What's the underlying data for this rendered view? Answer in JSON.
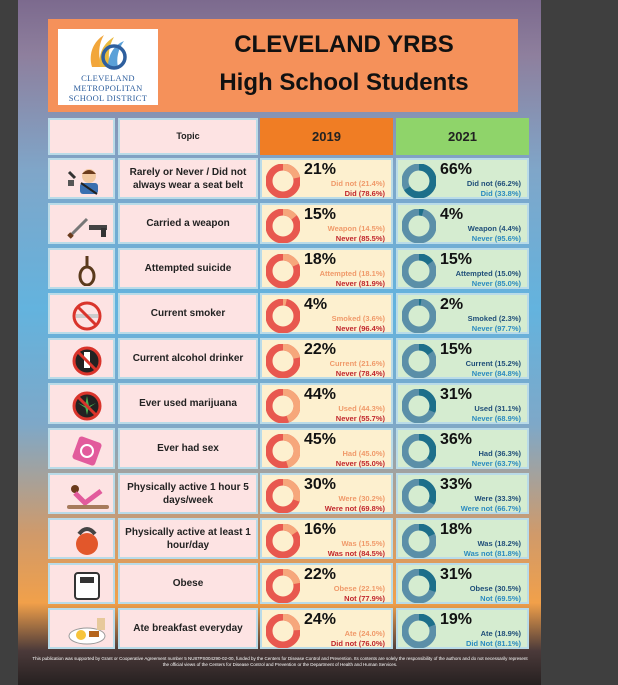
{
  "header": {
    "title_line1": "CLEVELAND YRBS",
    "title_line2": "High School Students",
    "logo": {
      "line1": "CLEVELAND",
      "line2": "METROPOLITAN",
      "line3": "SCHOOL DISTRICT"
    }
  },
  "table_header": {
    "topic": "Topic",
    "col_2019": "2019",
    "col_2021": "2021"
  },
  "colors": {
    "y2019_main": "#e8584f",
    "y2019_minor": "#f6a77b",
    "y2021_main": "#5b8fa8",
    "y2021_minor": "#1d6f8a"
  },
  "rows": [
    {
      "icon": "seatbelt-driver-icon",
      "topic": "Rarely or Never / Did not always wear a seat belt",
      "y2019": {
        "pct": "21%",
        "l1": "Did not (21.4%)",
        "l2": "Did (78.6%)",
        "value": 21.4
      },
      "y2021": {
        "pct": "66%",
        "l1": "Did not (66.2%)",
        "l2": "Did (33.8%)",
        "value": 66.2
      }
    },
    {
      "icon": "weapon-icon",
      "topic": "Carried a weapon",
      "y2019": {
        "pct": "15%",
        "l1": "Weapon (14.5%)",
        "l2": "Never (85.5%)",
        "value": 14.5
      },
      "y2021": {
        "pct": "4%",
        "l1": "Weapon (4.4%)",
        "l2": "Never (95.6%)",
        "value": 4.4
      }
    },
    {
      "icon": "noose-icon",
      "topic": "Attempted suicide",
      "y2019": {
        "pct": "18%",
        "l1": "Attempted (18.1%)",
        "l2": "Never (81.9%)",
        "value": 18.1
      },
      "y2021": {
        "pct": "15%",
        "l1": "Attempted (15.0%)",
        "l2": "Never (85.0%)",
        "value": 15.0
      }
    },
    {
      "icon": "no-smoking-icon",
      "topic": "Current smoker",
      "y2019": {
        "pct": "4%",
        "l1": "Smoked (3.6%)",
        "l2": "Never (96.4%)",
        "value": 3.6
      },
      "y2021": {
        "pct": "2%",
        "l1": "Smoked (2.3%)",
        "l2": "Never (97.7%)",
        "value": 2.3
      }
    },
    {
      "icon": "no-alcohol-icon",
      "topic": "Current alcohol drinker",
      "y2019": {
        "pct": "22%",
        "l1": "Current (21.6%)",
        "l2": "Never (78.4%)",
        "value": 21.6
      },
      "y2021": {
        "pct": "15%",
        "l1": "Current (15.2%)",
        "l2": "Never (84.8%)",
        "value": 15.2
      }
    },
    {
      "icon": "no-marijuana-icon",
      "topic": "Ever used marijuana",
      "y2019": {
        "pct": "44%",
        "l1": "Used (44.3%)",
        "l2": "Never (55.7%)",
        "value": 44.3
      },
      "y2021": {
        "pct": "31%",
        "l1": "Used (31.1%)",
        "l2": "Never (68.9%)",
        "value": 31.1
      }
    },
    {
      "icon": "condom-icon",
      "topic": "Ever had sex",
      "y2019": {
        "pct": "45%",
        "l1": "Had (45.0%)",
        "l2": "Never (55.0%)",
        "value": 45.0
      },
      "y2021": {
        "pct": "36%",
        "l1": "Had (36.3%)",
        "l2": "Never (63.7%)",
        "value": 36.3
      }
    },
    {
      "icon": "yoga-icon",
      "topic": "Physically active 1 hour 5 days/week",
      "y2019": {
        "pct": "30%",
        "l1": "Were (30.2%)",
        "l2": "Were not (69.8%)",
        "value": 30.2
      },
      "y2021": {
        "pct": "33%",
        "l1": "Were (33.3%)",
        "l2": "Were not (66.7%)",
        "value": 33.3
      }
    },
    {
      "icon": "kettlebell-icon",
      "topic": "Physically active at least 1 hour/day",
      "y2019": {
        "pct": "16%",
        "l1": "Was (15.5%)",
        "l2": "Was not (84.5%)",
        "value": 15.5
      },
      "y2021": {
        "pct": "18%",
        "l1": "Was (18.2%)",
        "l2": "Was not (81.8%)",
        "value": 18.2
      }
    },
    {
      "icon": "scale-icon",
      "topic": "Obese",
      "y2019": {
        "pct": "22%",
        "l1": "Obese (22.1%)",
        "l2": "Not (77.9%)",
        "value": 22.1
      },
      "y2021": {
        "pct": "31%",
        "l1": "Obese (30.5%)",
        "l2": "Not (69.5%)",
        "value": 30.5
      }
    },
    {
      "icon": "breakfast-icon",
      "topic": "Ate breakfast everyday",
      "y2019": {
        "pct": "24%",
        "l1": "Ate (24.0%)",
        "l2": "Did not (76.0%)",
        "value": 24.0
      },
      "y2021": {
        "pct": "19%",
        "l1": "Ate (18.9%)",
        "l2": "Did Not (81.1%)",
        "value": 18.9
      }
    }
  ],
  "footnote": "This publication was supported by Grant or Cooperative Agreement number 5 NU87PS004290-02-00, funded by the Centers for Disease Control and Prevention. Its contents are solely the responsibility of the authors and do not necessarily represent the official views of the Centers for Disease Control and Prevention or the Department of Health and Human Services."
}
